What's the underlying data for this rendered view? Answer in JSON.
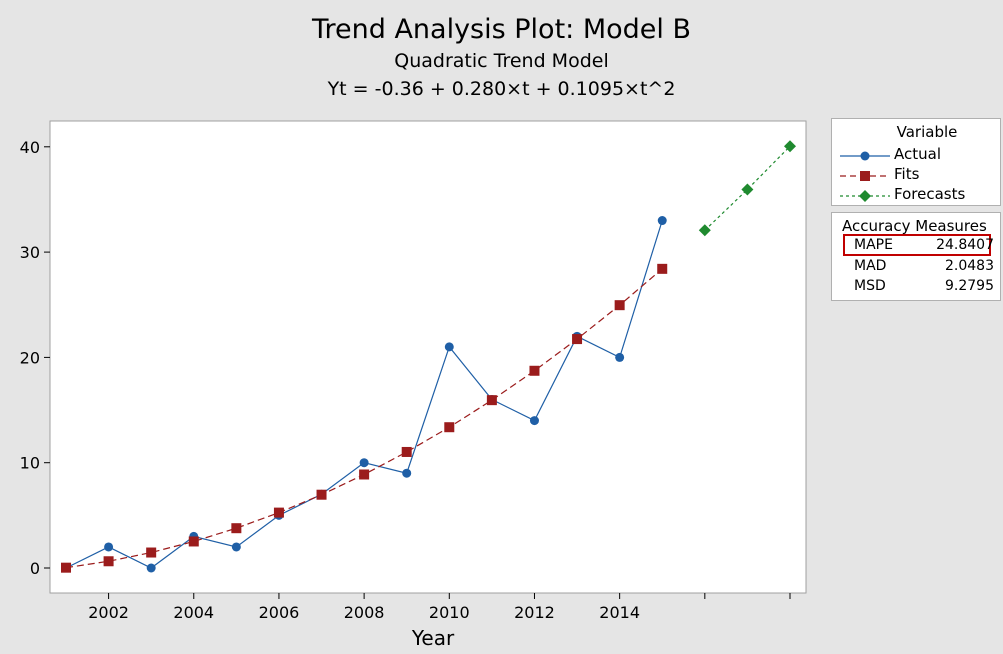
{
  "titles": {
    "main": "Trend Analysis Plot: Model B",
    "sub": "Quadratic Trend Model",
    "equation": "Yt = -0.36 + 0.280×t + 0.1095×t^2"
  },
  "legend": {
    "title": "Variable",
    "items": [
      "Actual",
      "Fits",
      "Forecasts"
    ]
  },
  "accuracy": {
    "title": "Accuracy Measures",
    "rows": [
      {
        "name": "MAPE",
        "value": "24.8407"
      },
      {
        "name": "MAD",
        "value": "2.0483"
      },
      {
        "name": "MSD",
        "value": "9.2795"
      }
    ],
    "highlighted": "MAPE"
  },
  "colors": {
    "actual": "#1f5fa6",
    "fits": "#9b1c1c",
    "forecasts": "#1f8a2f",
    "highlight": "#c00000"
  },
  "chart_data": {
    "type": "line",
    "xlabel": "Year",
    "ylabel": "",
    "x_ticks": [
      "2002",
      "2004",
      "2006",
      "2008",
      "2010",
      "2012",
      "2014"
    ],
    "y_ticks": [
      0,
      10,
      20,
      30,
      40
    ],
    "ylim": [
      -2.5,
      42
    ],
    "grid": false,
    "legend_position": "right",
    "series": [
      {
        "name": "Actual",
        "x": [
          2001,
          2002,
          2003,
          2004,
          2005,
          2006,
          2007,
          2008,
          2009,
          2010,
          2011,
          2012,
          2013,
          2014,
          2015
        ],
        "values": [
          0,
          2,
          0,
          3,
          2,
          5,
          7,
          10,
          9,
          21,
          16,
          14,
          22,
          20,
          33
        ]
      },
      {
        "name": "Fits",
        "x": [
          2001,
          2002,
          2003,
          2004,
          2005,
          2006,
          2007,
          2008,
          2009,
          2010,
          2011,
          2012,
          2013,
          2014,
          2015
        ],
        "values": [
          0.03,
          0.64,
          1.47,
          2.52,
          3.78,
          5.26,
          6.96,
          8.88,
          11.02,
          13.37,
          15.94,
          18.73,
          21.74,
          24.96,
          28.41
        ]
      },
      {
        "name": "Forecasts",
        "x": [
          2016,
          2017,
          2018
        ],
        "values": [
          32.07,
          35.95,
          40.05
        ]
      }
    ]
  }
}
